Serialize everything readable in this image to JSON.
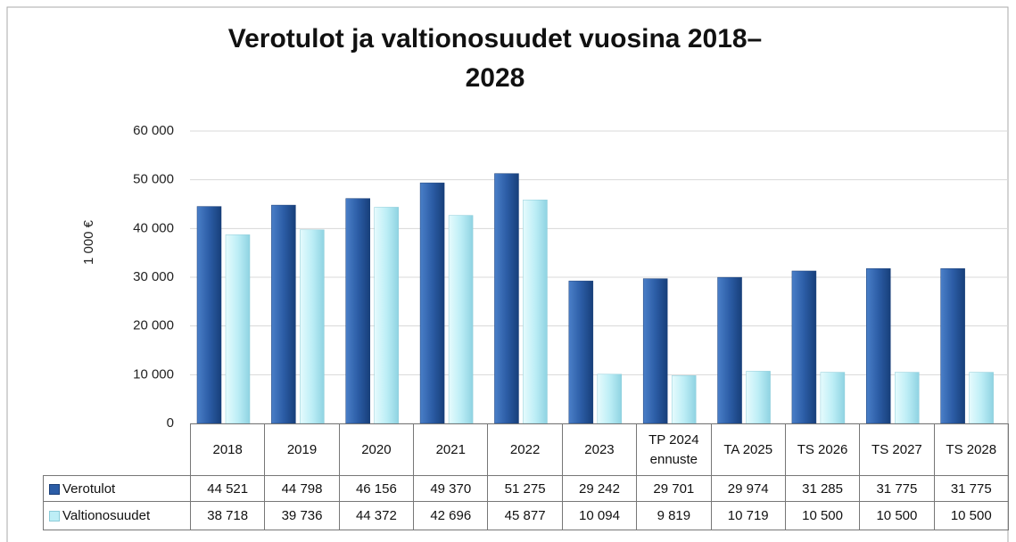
{
  "chart_data": {
    "type": "bar",
    "title": "Verotulot ja valtionosuudet vuosina 2018–2028",
    "y_label": "1 000 €",
    "categories": [
      "2018",
      "2019",
      "2020",
      "2021",
      "2022",
      "2023",
      "TP 2024 ennuste",
      "TA 2025",
      "TS 2026",
      "TS 2027",
      "TS 2028"
    ],
    "series": [
      {
        "name": "Verotulot",
        "color": "#2c5da6",
        "values": [
          44521,
          44798,
          46156,
          49370,
          51275,
          29242,
          29701,
          29974,
          31285,
          31775,
          31775
        ],
        "value_labels": [
          "44 521",
          "44 798",
          "46 156",
          "49 370",
          "51 275",
          "29 242",
          "29 701",
          "29 974",
          "31 285",
          "31 775",
          "31 775"
        ]
      },
      {
        "name": "Valtionosuudet",
        "color": "#bdeef6",
        "values": [
          38718,
          39736,
          44372,
          42696,
          45877,
          10094,
          9819,
          10719,
          10500,
          10500,
          10500
        ],
        "value_labels": [
          "38 718",
          "39 736",
          "44 372",
          "42 696",
          "45 877",
          "10 094",
          "9 819",
          "10 719",
          "10 500",
          "10 500",
          "10 500"
        ]
      }
    ],
    "ylim": [
      0,
      60000
    ],
    "yticks": [
      0,
      {
        "value": 10000,
        "label": "10 000"
      },
      {
        "value": 20000,
        "label": "20 000"
      },
      {
        "value": 30000,
        "label": "30 000"
      },
      {
        "value": 40000,
        "label": "40 000"
      },
      {
        "value": 50000,
        "label": "50 000"
      },
      {
        "value": 60000,
        "label": "60 000"
      }
    ],
    "grid": true
  }
}
